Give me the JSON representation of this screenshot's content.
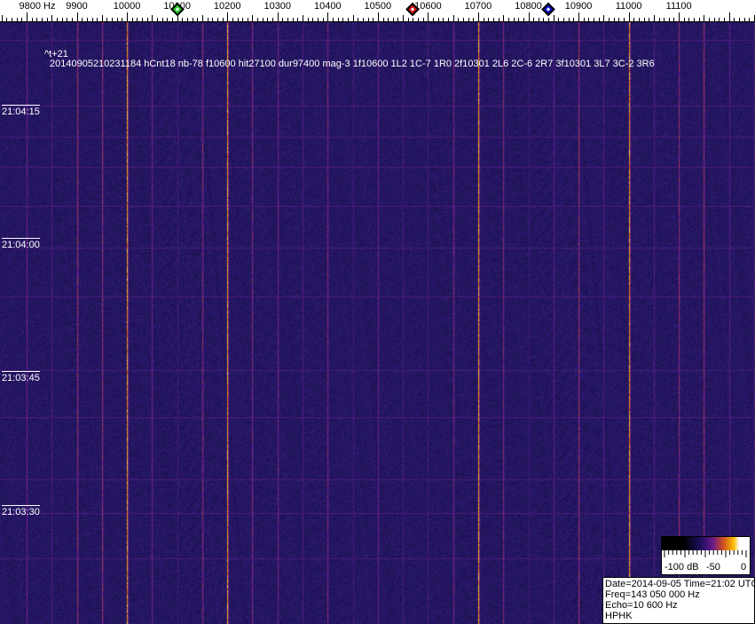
{
  "ruler": {
    "ticks": [
      "9800 Hz",
      "9900",
      "10000",
      "10100",
      "10200",
      "10300",
      "10400",
      "10500",
      "10600",
      "10700",
      "10800",
      "10900",
      "11000",
      "11100"
    ],
    "markers": [
      {
        "name": "green-marker",
        "freq_hz": 10100,
        "color": "#22cc22"
      },
      {
        "name": "red-marker",
        "freq_hz": 10570,
        "color": "#cc1111"
      },
      {
        "name": "blue-marker",
        "freq_hz": 10840,
        "color": "#1111cc"
      }
    ]
  },
  "waterfall": {
    "colormap": [
      "#000000",
      "#201060",
      "#6a1a8a",
      "#d0501e",
      "#ffc000",
      "#ffffff"
    ],
    "header_line1": "^t+21",
    "header_line2": "20140905210231184 hCnt18 nb-78 f10600 hit27100 dur97400 mag-3 1f10600 1L2 1C-7 1R0 2f10301 2L6 2C-6 2R7 3f10301 3L7 3C-2 3R6",
    "time_labels": [
      "21:04:15",
      "21:04:00",
      "21:03:45",
      "21:03:30"
    ]
  },
  "color_scale": {
    "labels": [
      "-100 dB",
      "-50",
      "0"
    ]
  },
  "info": {
    "date_time": "Date=2014-09-05 Time=21:02 UTC",
    "freq": "Freq=143 050 000 Hz",
    "echo": "Echo=10 600 Hz",
    "station": "HPHK"
  }
}
